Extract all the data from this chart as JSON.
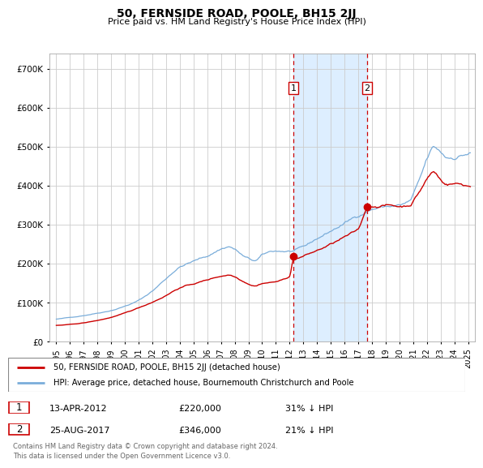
{
  "title": "50, FERNSIDE ROAD, POOLE, BH15 2JJ",
  "subtitle": "Price paid vs. HM Land Registry's House Price Index (HPI)",
  "ylabel_ticks": [
    "£0",
    "£100K",
    "£200K",
    "£300K",
    "£400K",
    "£500K",
    "£600K",
    "£700K"
  ],
  "ytick_values": [
    0,
    100000,
    200000,
    300000,
    400000,
    500000,
    600000,
    700000
  ],
  "ylim": [
    0,
    740000
  ],
  "xlim_start": 1994.5,
  "xlim_end": 2025.5,
  "xticks": [
    1995,
    1996,
    1997,
    1998,
    1999,
    2000,
    2001,
    2002,
    2003,
    2004,
    2005,
    2006,
    2007,
    2008,
    2009,
    2010,
    2011,
    2012,
    2013,
    2014,
    2015,
    2016,
    2017,
    2018,
    2019,
    2020,
    2021,
    2022,
    2023,
    2024,
    2025
  ],
  "marker1_x": 2012.28,
  "marker1_y": 220000,
  "marker1_label": "1",
  "marker1_date": "13-APR-2012",
  "marker1_price": "£220,000",
  "marker1_hpi": "31% ↓ HPI",
  "marker2_x": 2017.65,
  "marker2_y": 346000,
  "marker2_label": "2",
  "marker2_date": "25-AUG-2017",
  "marker2_price": "£346,000",
  "marker2_hpi": "21% ↓ HPI",
  "line1_label": "50, FERNSIDE ROAD, POOLE, BH15 2JJ (detached house)",
  "line2_label": "HPI: Average price, detached house, Bournemouth Christchurch and Poole",
  "line1_color": "#cc0000",
  "line2_color": "#7aadda",
  "marker_color": "#cc0000",
  "shade_color": "#ddeeff",
  "vline_color": "#cc0000",
  "grid_color": "#cccccc",
  "background_color": "#ffffff",
  "footer_text": "Contains HM Land Registry data © Crown copyright and database right 2024.\nThis data is licensed under the Open Government Licence v3.0.",
  "legend_box_color": "#888888",
  "table_box_color": "#cc0000"
}
